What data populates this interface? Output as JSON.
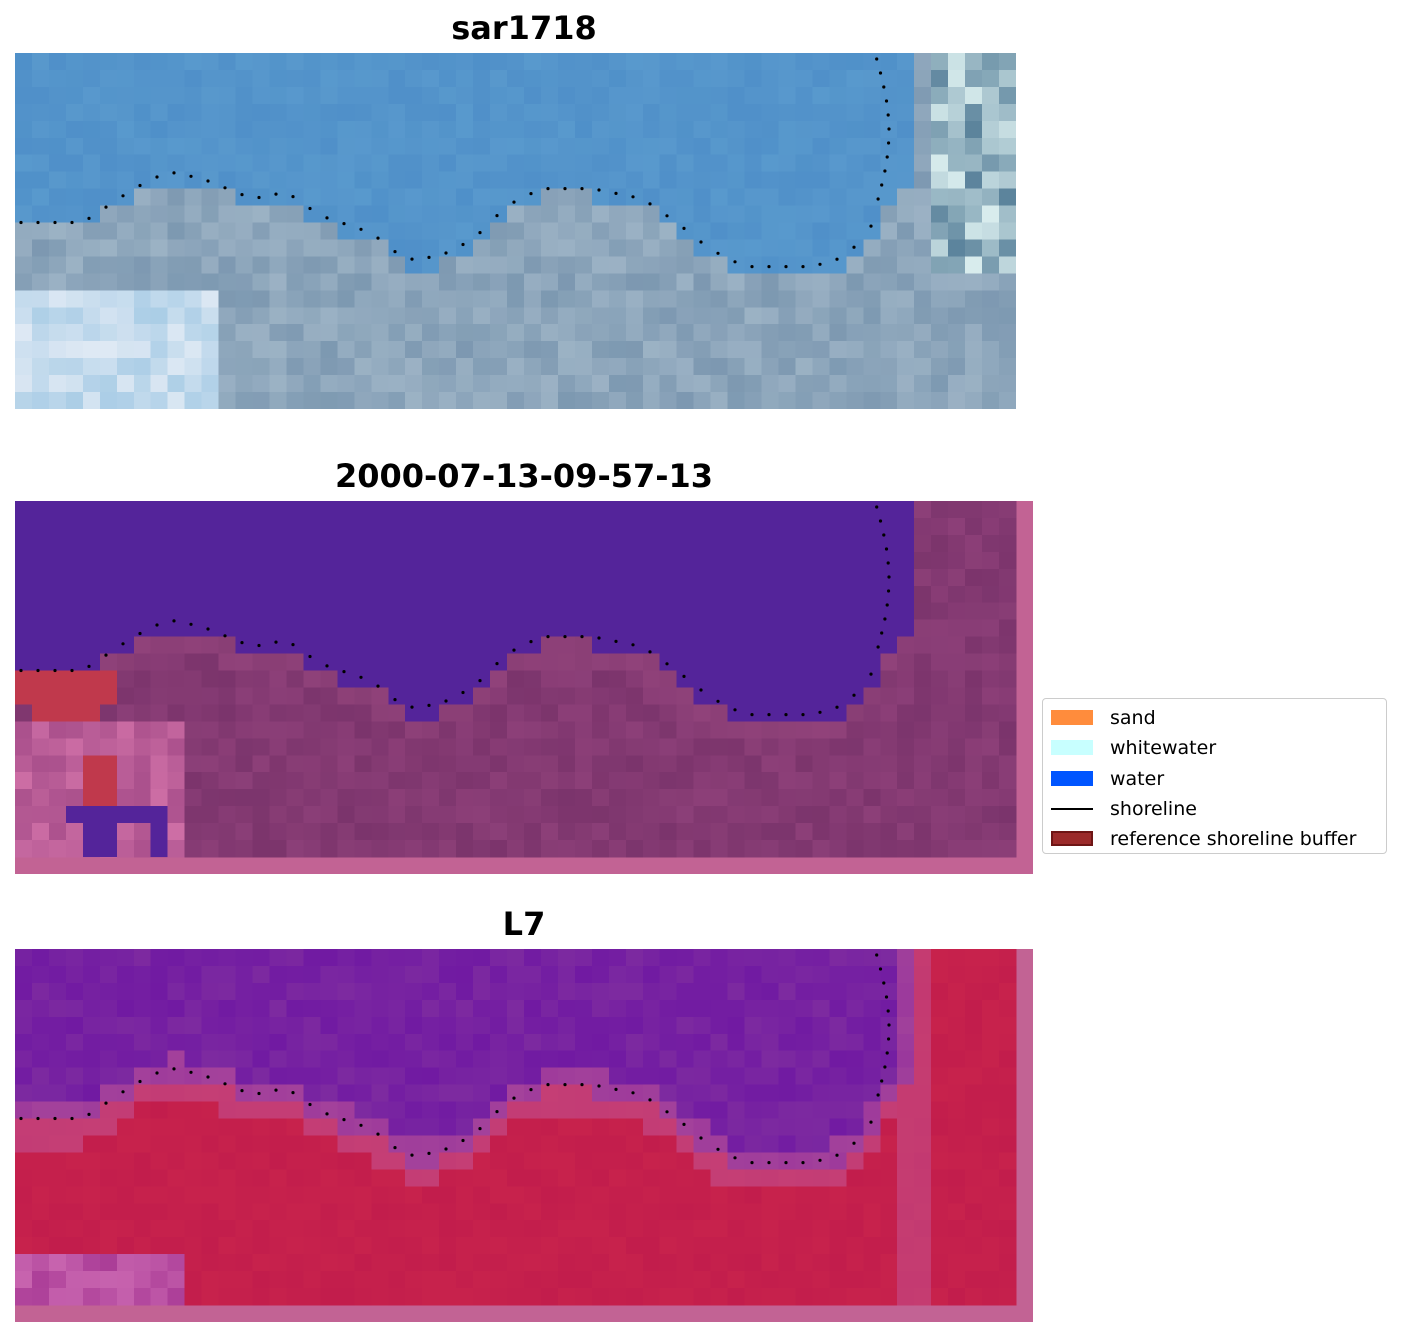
{
  "panels": [
    {
      "title": "sar1718"
    },
    {
      "title": "2000-07-13-09-57-13"
    },
    {
      "title": "L7"
    }
  ],
  "legend": {
    "items": [
      {
        "label": "sand",
        "color": "#ff8c3c",
        "kind": "patch"
      },
      {
        "label": "whitewater",
        "color": "#c8ffff",
        "kind": "patch"
      },
      {
        "label": "water",
        "color": "#0055ff",
        "kind": "patch"
      },
      {
        "label": "shoreline",
        "color": "#000000",
        "kind": "line"
      },
      {
        "label": "reference shoreline buffer",
        "color": "#9b2a2a",
        "edge": "#6e1515",
        "kind": "patch"
      }
    ]
  },
  "colors": {
    "rgb_water": "#4a8ac6",
    "rgb_land": "#6f8da8",
    "class_water": "#54249a",
    "class_land": "#8c3f78",
    "class_frame": "#c26394",
    "ref_buffer": "#c0394c",
    "ndwi_water": "#7d2aa0",
    "ndwi_land": "#c21d4c",
    "shoreline_dots": "#000000"
  }
}
